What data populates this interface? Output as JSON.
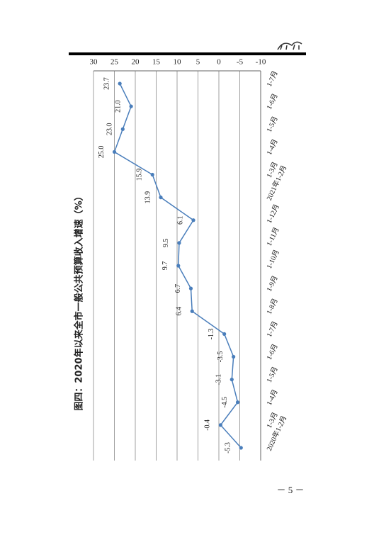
{
  "chart_data": {
    "type": "line",
    "title": "图四：2020年以来全市一般公共预算收入增速（%）",
    "categories": [
      "2020年1-2月",
      "1-3月",
      "1-4月",
      "1-5月",
      "1-6月",
      "1-7月",
      "1-8月",
      "1-9月",
      "1-10月",
      "1-11月",
      "1-12月",
      "2021年1-2月",
      "1-3月",
      "1-4月",
      "1-5月",
      "1-6月",
      "1-7月"
    ],
    "values": [
      -5.3,
      -0.4,
      -4.5,
      -3.1,
      -3.5,
      -1.3,
      6.4,
      6.7,
      9.7,
      9.5,
      6.1,
      13.9,
      15.9,
      25.0,
      23.0,
      21.0,
      23.7
    ],
    "value_labels": [
      "-5.3",
      "-0.4",
      "-4.5",
      "-3.1",
      "-3.5",
      "-1.3",
      "6.4",
      "6.7",
      "9.7",
      "9.5",
      "6.1",
      "13.9",
      "15.9",
      "25.0",
      "23.0",
      "21.0",
      "23.7"
    ],
    "color": "#4a7ebb",
    "ylim": [
      -10,
      30
    ],
    "yticks": [
      -10,
      -5,
      0,
      5,
      10,
      15,
      20,
      25,
      30
    ],
    "grid": true
  },
  "page_number": "－ 5 －"
}
